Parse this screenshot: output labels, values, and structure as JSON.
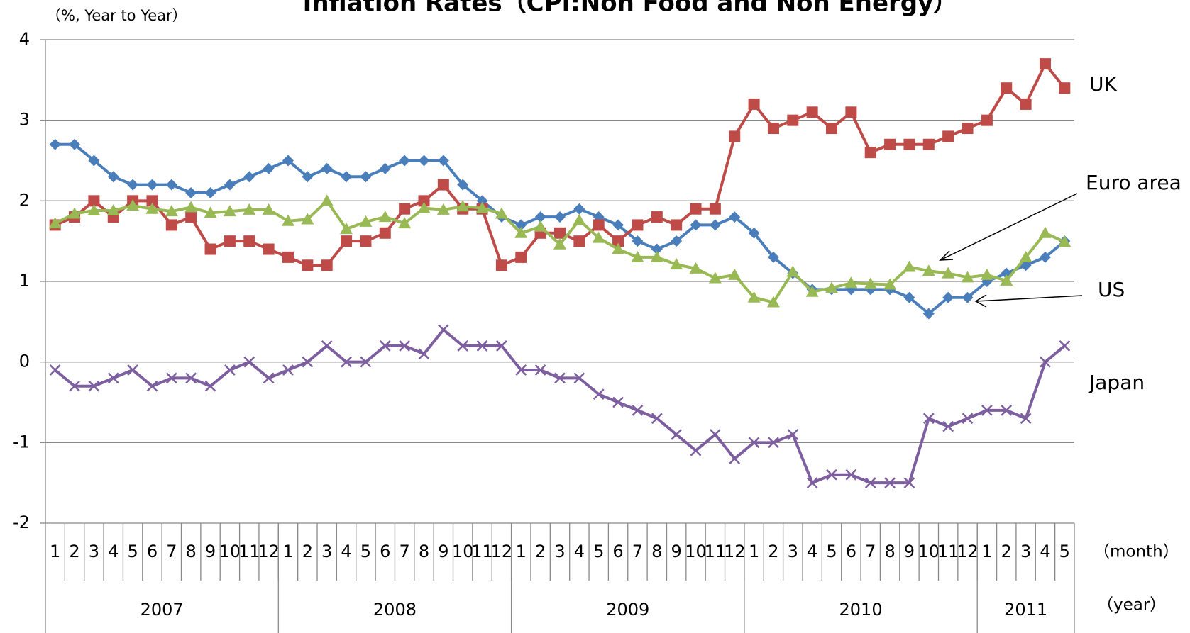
{
  "chart_data": {
    "type": "line",
    "title": "Inflation Rates（CPI:Non Food and Non Energy）",
    "y_label": "（%, Year to Year）",
    "x_label": "（month）",
    "x_group_label": "（year）",
    "categories": [
      "1",
      "2",
      "3",
      "4",
      "5",
      "6",
      "7",
      "8",
      "9",
      "10",
      "11",
      "12",
      "1",
      "2",
      "3",
      "4",
      "5",
      "6",
      "7",
      "8",
      "9",
      "10",
      "11",
      "12",
      "1",
      "2",
      "3",
      "4",
      "5",
      "6",
      "7",
      "8",
      "9",
      "10",
      "11",
      "12",
      "1",
      "2",
      "3",
      "4",
      "5",
      "6",
      "7",
      "8",
      "9",
      "10",
      "11",
      "12",
      "1",
      "2",
      "3",
      "4",
      "5"
    ],
    "years": [
      "2007",
      "2008",
      "2009",
      "2010",
      "2011"
    ],
    "ylim": [
      -2,
      4
    ],
    "yticks": [
      -2,
      -1,
      0,
      1,
      2,
      3,
      4
    ],
    "grid": true,
    "series": [
      {
        "name": "US",
        "color": "#4a7ebb",
        "marker": "diamond",
        "values": [
          2.7,
          2.7,
          2.5,
          2.3,
          2.2,
          2.2,
          2.2,
          2.1,
          2.1,
          2.2,
          2.3,
          2.4,
          2.5,
          2.3,
          2.4,
          2.3,
          2.3,
          2.4,
          2.5,
          2.5,
          2.5,
          2.2,
          2.0,
          1.8,
          1.7,
          1.8,
          1.8,
          1.9,
          1.8,
          1.7,
          1.5,
          1.4,
          1.5,
          1.7,
          1.7,
          1.8,
          1.6,
          1.3,
          1.1,
          0.9,
          0.9,
          0.9,
          0.9,
          0.9,
          0.8,
          0.6,
          0.8,
          0.8,
          1.0,
          1.1,
          1.2,
          1.3,
          1.5
        ]
      },
      {
        "name": "UK",
        "color": "#be4b48",
        "marker": "square",
        "values": [
          1.7,
          1.8,
          2.0,
          1.8,
          2.0,
          2.0,
          1.7,
          1.8,
          1.4,
          1.5,
          1.5,
          1.4,
          1.3,
          1.2,
          1.2,
          1.5,
          1.5,
          1.6,
          1.9,
          2.0,
          2.2,
          1.9,
          1.9,
          1.2,
          1.3,
          1.6,
          1.6,
          1.5,
          1.7,
          1.5,
          1.7,
          1.8,
          1.7,
          1.9,
          1.9,
          2.8,
          3.2,
          2.9,
          3.0,
          3.1,
          2.9,
          3.1,
          2.6,
          2.7,
          2.7,
          2.7,
          2.8,
          2.9,
          3.0,
          3.4,
          3.2,
          3.7,
          3.4
        ]
      },
      {
        "name": "Euro area",
        "color": "#98b954",
        "marker": "triangle",
        "values": [
          1.72,
          1.84,
          1.88,
          1.88,
          1.94,
          1.9,
          1.87,
          1.92,
          1.85,
          1.87,
          1.89,
          1.89,
          1.75,
          1.77,
          2.0,
          1.65,
          1.74,
          1.8,
          1.72,
          1.91,
          1.89,
          1.93,
          1.91,
          1.84,
          1.6,
          1.68,
          1.46,
          1.76,
          1.54,
          1.4,
          1.3,
          1.3,
          1.21,
          1.16,
          1.04,
          1.08,
          0.8,
          0.74,
          1.12,
          0.87,
          0.92,
          0.98,
          0.97,
          0.96,
          1.18,
          1.13,
          1.1,
          1.05,
          1.08,
          1.01,
          1.3,
          1.6,
          1.49
        ]
      },
      {
        "name": "Japan",
        "color": "#7d5fa0",
        "marker": "x",
        "values": [
          -0.1,
          -0.3,
          -0.3,
          -0.2,
          -0.1,
          -0.3,
          -0.2,
          -0.2,
          -0.3,
          -0.1,
          0.0,
          -0.2,
          -0.1,
          0.0,
          0.2,
          0.0,
          0.0,
          0.2,
          0.2,
          0.1,
          0.4,
          0.2,
          0.2,
          0.2,
          -0.1,
          -0.1,
          -0.2,
          -0.2,
          -0.4,
          -0.5,
          -0.6,
          -0.7,
          -0.9,
          -1.1,
          -0.9,
          -1.2,
          -1.0,
          -1.0,
          -0.9,
          -1.5,
          -1.4,
          -1.4,
          -1.5,
          -1.5,
          -1.5,
          -0.7,
          -0.8,
          -0.7,
          -0.6,
          -0.6,
          -0.7,
          0.0,
          0.2
        ]
      }
    ]
  }
}
